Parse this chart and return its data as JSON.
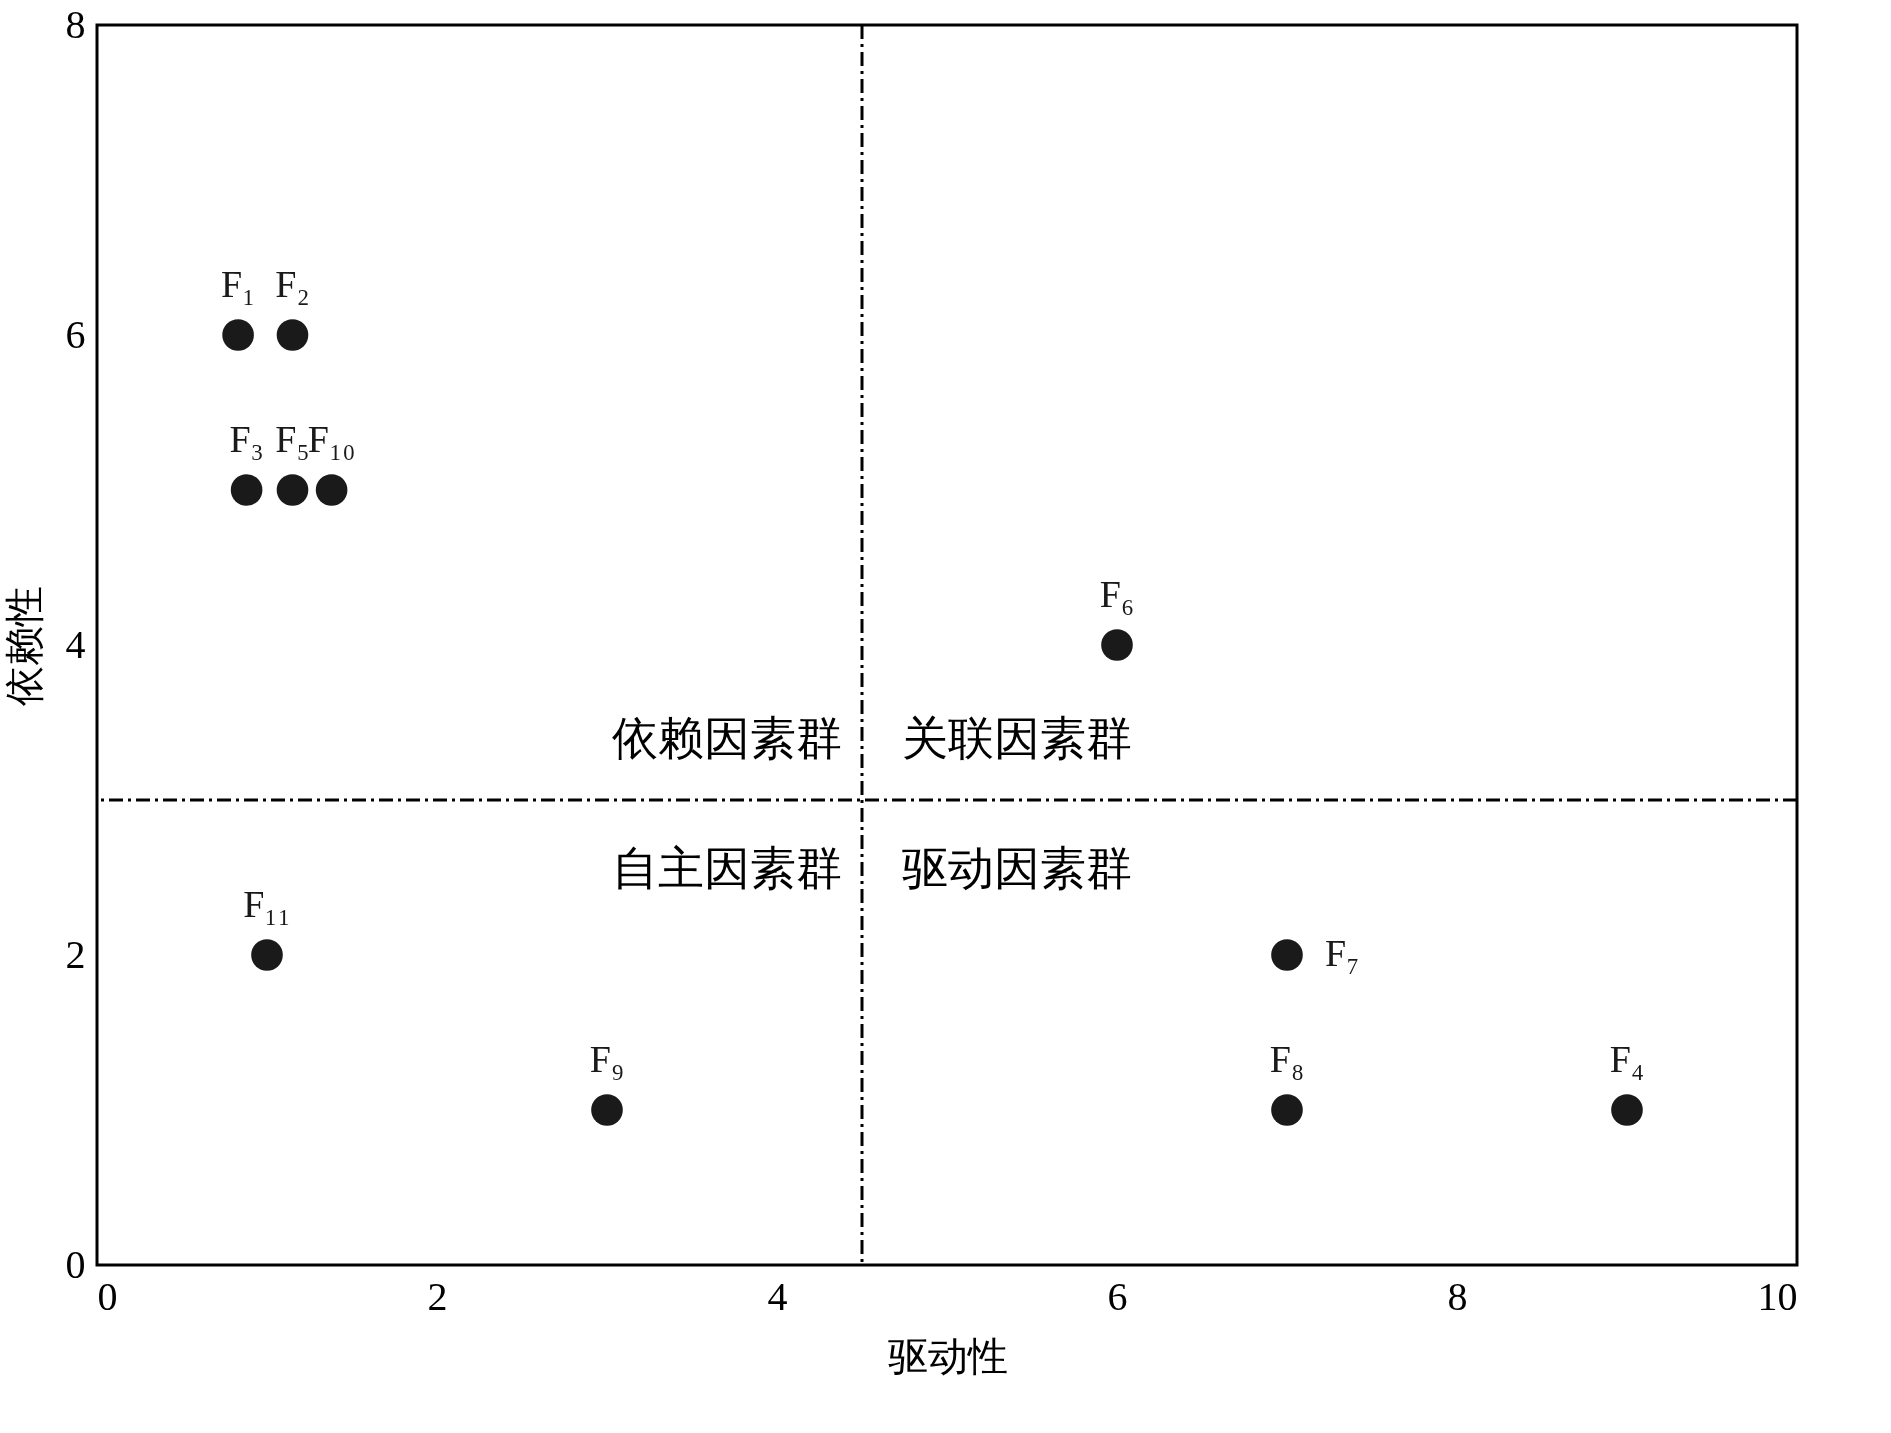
{
  "chart_data": {
    "type": "scatter",
    "xlabel": "驱动性",
    "ylabel": "依赖性",
    "xlim": [
      0,
      10
    ],
    "ylim": [
      0,
      8
    ],
    "xticks": [
      0,
      2,
      4,
      6,
      8,
      10
    ],
    "yticks": [
      0,
      2,
      4,
      6,
      8
    ],
    "grid": false,
    "marker": "circle",
    "series": [
      {
        "name": "F₁",
        "color": "#1a1a1a",
        "x": [
          0.83
        ],
        "values": [
          6
        ]
      },
      {
        "name": "F₂",
        "color": "#1a1a1a",
        "x": [
          1.15
        ],
        "values": [
          6
        ]
      },
      {
        "name": "F₃",
        "color": "#1a1a1a",
        "x": [
          0.88
        ],
        "values": [
          5
        ]
      },
      {
        "name": "F₄",
        "color": "#1a1a1a",
        "x": [
          9
        ],
        "values": [
          1
        ]
      },
      {
        "name": "F₅",
        "color": "#1a1a1a",
        "x": [
          1.15
        ],
        "values": [
          5
        ]
      },
      {
        "name": "F₆",
        "color": "#1a1a1a",
        "x": [
          6
        ],
        "values": [
          4
        ]
      },
      {
        "name": "F₇",
        "color": "#1a1a1a",
        "x": [
          7
        ],
        "values": [
          2
        ]
      },
      {
        "name": "F₈",
        "color": "#1a1a1a",
        "x": [
          7
        ],
        "values": [
          1
        ]
      },
      {
        "name": "F₉",
        "color": "#1a1a1a",
        "x": [
          3
        ],
        "values": [
          1
        ]
      },
      {
        "name": "F₁₀",
        "color": "#1a1a1a",
        "x": [
          1.38
        ],
        "values": [
          5
        ]
      },
      {
        "name": "F₁₁",
        "color": "#1a1a1a",
        "x": [
          1
        ],
        "values": [
          2
        ]
      }
    ],
    "ref_lines": [
      {
        "axis": "x",
        "value": 4.5,
        "line_style": "dashdot",
        "color": "#000000"
      },
      {
        "axis": "y",
        "value": 3,
        "line_style": "dashdot",
        "color": "#000000"
      }
    ],
    "annotations": [
      "依赖因素群",
      "关联因素群",
      "自主因素群",
      "驱动因素群"
    ]
  }
}
